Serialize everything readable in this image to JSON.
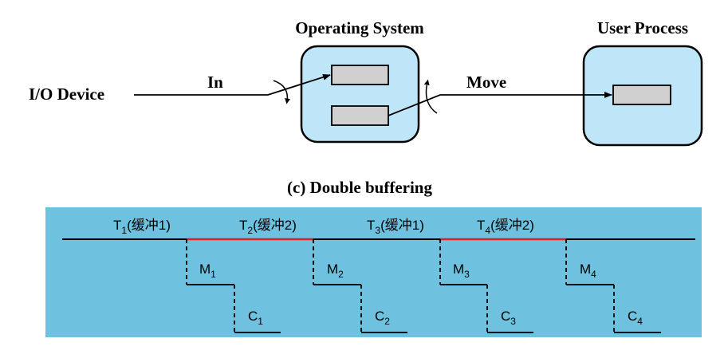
{
  "top": {
    "io_device_label": "I/O Device",
    "in_label": "In",
    "move_label": "Move",
    "os_title": "Operating System",
    "user_title": "User Process",
    "caption": "(c) Double buffering"
  },
  "timeline": {
    "t_labels": [
      {
        "base": "T",
        "sub": "1",
        "suffix": "(缓冲1)"
      },
      {
        "base": "T",
        "sub": "2",
        "suffix": "(缓冲2)"
      },
      {
        "base": "T",
        "sub": "3",
        "suffix": "(缓冲1)"
      },
      {
        "base": "T",
        "sub": "4",
        "suffix": "(缓冲2)"
      }
    ],
    "m_labels": [
      {
        "base": "M",
        "sub": "1"
      },
      {
        "base": "M",
        "sub": "2"
      },
      {
        "base": "M",
        "sub": "3"
      },
      {
        "base": "M",
        "sub": "4"
      }
    ],
    "c_labels": [
      {
        "base": "C",
        "sub": "1"
      },
      {
        "base": "C",
        "sub": "2"
      },
      {
        "base": "C",
        "sub": "3"
      },
      {
        "base": "C",
        "sub": "4"
      }
    ]
  },
  "colors": {
    "box_fill": "#bfe6f8",
    "buffer_fill": "#d0d0d0",
    "panel_bg": "#6ec1df",
    "highlight": "#e02020"
  }
}
